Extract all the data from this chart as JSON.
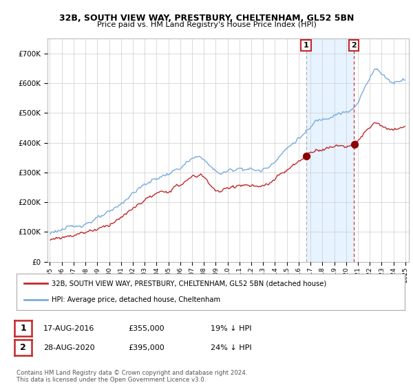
{
  "title": "32B, SOUTH VIEW WAY, PRESTBURY, CHELTENHAM, GL52 5BN",
  "subtitle": "Price paid vs. HM Land Registry's House Price Index (HPI)",
  "legend_line1": "32B, SOUTH VIEW WAY, PRESTBURY, CHELTENHAM, GL52 5BN (detached house)",
  "legend_line2": "HPI: Average price, detached house, Cheltenham",
  "annotation1_date": "17-AUG-2016",
  "annotation1_price": "£355,000",
  "annotation1_hpi": "19% ↓ HPI",
  "annotation2_date": "28-AUG-2020",
  "annotation2_price": "£395,000",
  "annotation2_hpi": "24% ↓ HPI",
  "footer": "Contains HM Land Registry data © Crown copyright and database right 2024.\nThis data is licensed under the Open Government Licence v3.0.",
  "ylim": [
    0,
    750000
  ],
  "yticks": [
    0,
    100000,
    200000,
    300000,
    400000,
    500000,
    600000,
    700000
  ],
  "hpi_color": "#7aabdb",
  "price_color": "#c0282a",
  "vline1_color": "#aaaaaa",
  "vline2_color": "#cc2222",
  "shade_color": "#ddeeff",
  "marker_color": "#8b0000",
  "background_color": "#ffffff",
  "grid_color": "#cccccc",
  "sale1_year": 2016.625,
  "sale2_year": 2020.667,
  "sale1_price": 355000,
  "sale2_price": 395000
}
